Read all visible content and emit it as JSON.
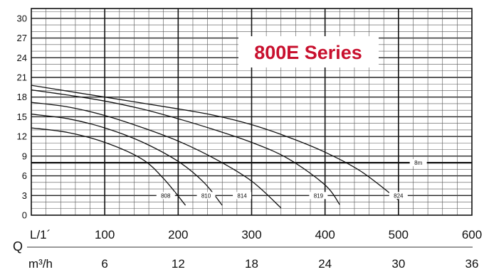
{
  "chart_data": {
    "type": "line",
    "title": "800E Series",
    "y_ticks": [
      "0",
      "3",
      "6",
      "9",
      "12",
      "15",
      "18",
      "21",
      "24",
      "27",
      "30"
    ],
    "ylim": [
      0,
      31.5
    ],
    "xlim": [
      0,
      600
    ],
    "x_ticks_lmin": [
      "100",
      "200",
      "300",
      "400",
      "500",
      "600"
    ],
    "x_ticks_m3h": [
      "6",
      "12",
      "18",
      "24",
      "30",
      "36"
    ],
    "x_unit_lmin": "L/1´",
    "x_unit_m3h": "m³/h",
    "q_label": "Q",
    "grid": true,
    "reference_line": {
      "label": "8m",
      "y": 8
    },
    "series": [
      {
        "name": "808",
        "points": [
          [
            0,
            13.3
          ],
          [
            50,
            12.6
          ],
          [
            100,
            11.1
          ],
          [
            150,
            8.6
          ],
          [
            180,
            5.6
          ],
          [
            210,
            1.5
          ]
        ]
      },
      {
        "name": "810",
        "points": [
          [
            0,
            15.4
          ],
          [
            50,
            14.7
          ],
          [
            100,
            13.3
          ],
          [
            150,
            11.2
          ],
          [
            200,
            8.2
          ],
          [
            235,
            5.0
          ],
          [
            260,
            1.5
          ]
        ]
      },
      {
        "name": "814",
        "points": [
          [
            0,
            17.2
          ],
          [
            50,
            16.5
          ],
          [
            100,
            15.2
          ],
          [
            150,
            13.4
          ],
          [
            200,
            11.3
          ],
          [
            250,
            8.6
          ],
          [
            300,
            5.2
          ],
          [
            340,
            1.1
          ]
        ]
      },
      {
        "name": "819",
        "points": [
          [
            0,
            19.1
          ],
          [
            50,
            18.3
          ],
          [
            100,
            17.4
          ],
          [
            150,
            16.2
          ],
          [
            200,
            14.7
          ],
          [
            250,
            13.0
          ],
          [
            300,
            11.1
          ],
          [
            350,
            8.6
          ],
          [
            400,
            4.6
          ],
          [
            420,
            1.6
          ]
        ]
      },
      {
        "name": "824",
        "points": [
          [
            0,
            19.8
          ],
          [
            100,
            18.0
          ],
          [
            200,
            16.2
          ],
          [
            250,
            15.2
          ],
          [
            300,
            13.8
          ],
          [
            350,
            11.9
          ],
          [
            400,
            9.6
          ],
          [
            450,
            6.6
          ],
          [
            500,
            2.3
          ]
        ]
      }
    ]
  }
}
